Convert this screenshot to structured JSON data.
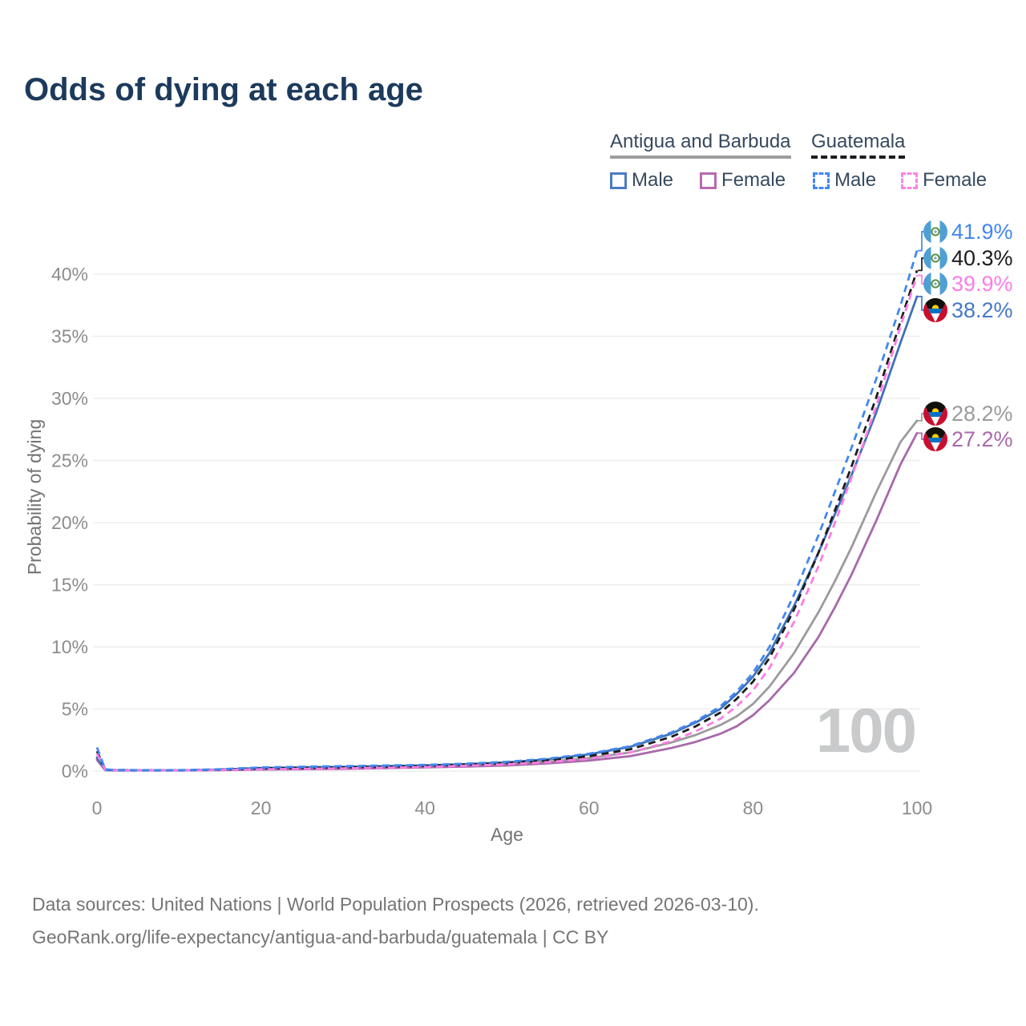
{
  "title": "Odds of dying at each age",
  "watermark": "100",
  "legend": {
    "groups": [
      {
        "label": "Antigua and Barbuda",
        "line_color": "#9e9e9e",
        "line_style": "solid"
      },
      {
        "label": "Guatemala",
        "line_color": "#1c1c1c",
        "line_style": "dashed"
      }
    ],
    "items": [
      {
        "country": "Antigua and Barbuda",
        "label": "Male",
        "swatch_color": "#4a7bc4",
        "swatch_style": "solid"
      },
      {
        "country": "Antigua and Barbuda",
        "label": "Female",
        "swatch_color": "#b66ab0",
        "swatch_style": "solid"
      },
      {
        "country": "Guatemala",
        "label": "Male",
        "swatch_color": "#4287f0",
        "swatch_style": "dashed"
      },
      {
        "country": "Guatemala",
        "label": "Female",
        "swatch_color": "#fb85e6",
        "swatch_style": "dashed"
      }
    ]
  },
  "chart_data": {
    "type": "line",
    "title": "Odds of dying at each age",
    "xlabel": "Age",
    "ylabel": "Probability of dying",
    "xlim": [
      0,
      100
    ],
    "ylim": [
      0,
      43
    ],
    "grid": "horizontal",
    "legend_position": "top-right",
    "x_ticks": [
      {
        "v": 0,
        "label": "0"
      },
      {
        "v": 20,
        "label": "20"
      },
      {
        "v": 40,
        "label": "40"
      },
      {
        "v": 60,
        "label": "60"
      },
      {
        "v": 80,
        "label": "80"
      },
      {
        "v": 100,
        "label": "100"
      }
    ],
    "y_ticks": [
      {
        "v": 0,
        "label": "0%"
      },
      {
        "v": 5,
        "label": "5%"
      },
      {
        "v": 10,
        "label": "10%"
      },
      {
        "v": 15,
        "label": "15%"
      },
      {
        "v": 20,
        "label": "20%"
      },
      {
        "v": 25,
        "label": "25%"
      },
      {
        "v": 30,
        "label": "30%"
      },
      {
        "v": 35,
        "label": "35%"
      },
      {
        "v": 40,
        "label": "40%"
      }
    ],
    "series": [
      {
        "name": "Antigua and Barbuda",
        "sex": "both",
        "color": "#9b9b9b",
        "dashed": false,
        "points": [
          [
            0,
            1.0
          ],
          [
            1,
            0.09
          ],
          [
            2,
            0.06
          ],
          [
            5,
            0.05
          ],
          [
            10,
            0.05
          ],
          [
            15,
            0.1
          ],
          [
            20,
            0.18
          ],
          [
            25,
            0.22
          ],
          [
            30,
            0.26
          ],
          [
            35,
            0.31
          ],
          [
            40,
            0.38
          ],
          [
            45,
            0.46
          ],
          [
            50,
            0.55
          ],
          [
            55,
            0.75
          ],
          [
            60,
            1.05
          ],
          [
            65,
            1.5
          ],
          [
            70,
            2.3
          ],
          [
            73,
            2.9
          ],
          [
            76,
            3.7
          ],
          [
            78,
            4.4
          ],
          [
            80,
            5.4
          ],
          [
            82,
            6.8
          ],
          [
            85,
            9.5
          ],
          [
            88,
            12.8
          ],
          [
            90,
            15.3
          ],
          [
            92,
            18.0
          ],
          [
            95,
            22.4
          ],
          [
            98,
            26.5
          ],
          [
            100,
            28.2
          ]
        ]
      },
      {
        "name": "Antigua and Barbuda Female",
        "sex": "female",
        "color": "#a869aa",
        "dashed": false,
        "points": [
          [
            0,
            0.9
          ],
          [
            1,
            0.08
          ],
          [
            2,
            0.05
          ],
          [
            5,
            0.05
          ],
          [
            10,
            0.05
          ],
          [
            15,
            0.08
          ],
          [
            20,
            0.12
          ],
          [
            25,
            0.15
          ],
          [
            30,
            0.18
          ],
          [
            35,
            0.24
          ],
          [
            40,
            0.3
          ],
          [
            45,
            0.37
          ],
          [
            50,
            0.45
          ],
          [
            55,
            0.62
          ],
          [
            60,
            0.85
          ],
          [
            65,
            1.2
          ],
          [
            70,
            1.85
          ],
          [
            73,
            2.35
          ],
          [
            76,
            3.0
          ],
          [
            78,
            3.6
          ],
          [
            80,
            4.5
          ],
          [
            82,
            5.7
          ],
          [
            85,
            7.9
          ],
          [
            88,
            10.8
          ],
          [
            90,
            13.2
          ],
          [
            92,
            15.8
          ],
          [
            95,
            20.1
          ],
          [
            98,
            24.7
          ],
          [
            100,
            27.2
          ]
        ]
      },
      {
        "name": "Antigua and Barbuda Male",
        "sex": "male",
        "color": "#3f72b7",
        "dashed": false,
        "points": [
          [
            0,
            1.1
          ],
          [
            1,
            0.1
          ],
          [
            2,
            0.07
          ],
          [
            5,
            0.06
          ],
          [
            10,
            0.06
          ],
          [
            15,
            0.12
          ],
          [
            20,
            0.25
          ],
          [
            25,
            0.3
          ],
          [
            30,
            0.35
          ],
          [
            35,
            0.4
          ],
          [
            40,
            0.46
          ],
          [
            45,
            0.56
          ],
          [
            50,
            0.7
          ],
          [
            55,
            0.95
          ],
          [
            60,
            1.35
          ],
          [
            65,
            1.95
          ],
          [
            70,
            3.0
          ],
          [
            73,
            3.9
          ],
          [
            76,
            5.0
          ],
          [
            78,
            6.2
          ],
          [
            80,
            7.6
          ],
          [
            82,
            9.5
          ],
          [
            85,
            13.3
          ],
          [
            88,
            17.6
          ],
          [
            90,
            20.7
          ],
          [
            92,
            23.8
          ],
          [
            95,
            28.8
          ],
          [
            98,
            34.5
          ],
          [
            100,
            38.2
          ]
        ]
      },
      {
        "name": "Guatemala",
        "sex": "both",
        "color": "#1c1c1c",
        "dashed": true,
        "points": [
          [
            0,
            1.6
          ],
          [
            1,
            0.13
          ],
          [
            2,
            0.09
          ],
          [
            5,
            0.07
          ],
          [
            10,
            0.07
          ],
          [
            15,
            0.12
          ],
          [
            20,
            0.22
          ],
          [
            25,
            0.26
          ],
          [
            30,
            0.3
          ],
          [
            35,
            0.35
          ],
          [
            40,
            0.42
          ],
          [
            45,
            0.52
          ],
          [
            50,
            0.65
          ],
          [
            55,
            0.85
          ],
          [
            60,
            1.2
          ],
          [
            65,
            1.75
          ],
          [
            70,
            2.75
          ],
          [
            73,
            3.6
          ],
          [
            76,
            4.7
          ],
          [
            78,
            5.8
          ],
          [
            80,
            7.2
          ],
          [
            82,
            9.1
          ],
          [
            85,
            13.0
          ],
          [
            88,
            17.6
          ],
          [
            90,
            21.0
          ],
          [
            92,
            24.5
          ],
          [
            95,
            30.0
          ],
          [
            98,
            36.2
          ],
          [
            100,
            40.3
          ]
        ]
      },
      {
        "name": "Guatemala Female",
        "sex": "female",
        "color": "#fb7de4",
        "dashed": true,
        "points": [
          [
            0,
            1.4
          ],
          [
            1,
            0.12
          ],
          [
            2,
            0.08
          ],
          [
            5,
            0.06
          ],
          [
            10,
            0.06
          ],
          [
            15,
            0.1
          ],
          [
            20,
            0.15
          ],
          [
            25,
            0.18
          ],
          [
            30,
            0.22
          ],
          [
            35,
            0.27
          ],
          [
            40,
            0.33
          ],
          [
            45,
            0.43
          ],
          [
            50,
            0.55
          ],
          [
            55,
            0.72
          ],
          [
            60,
            1.0
          ],
          [
            65,
            1.5
          ],
          [
            70,
            2.4
          ],
          [
            73,
            3.2
          ],
          [
            76,
            4.2
          ],
          [
            78,
            5.2
          ],
          [
            80,
            6.5
          ],
          [
            82,
            8.3
          ],
          [
            85,
            12.0
          ],
          [
            88,
            16.5
          ],
          [
            90,
            20.0
          ],
          [
            92,
            23.6
          ],
          [
            95,
            29.3
          ],
          [
            98,
            35.8
          ],
          [
            100,
            39.9
          ]
        ]
      },
      {
        "name": "Guatemala Male",
        "sex": "male",
        "color": "#4287f0",
        "dashed": true,
        "points": [
          [
            0,
            1.9
          ],
          [
            1,
            0.15
          ],
          [
            2,
            0.1
          ],
          [
            5,
            0.08
          ],
          [
            10,
            0.08
          ],
          [
            15,
            0.15
          ],
          [
            20,
            0.3
          ],
          [
            25,
            0.35
          ],
          [
            30,
            0.4
          ],
          [
            35,
            0.45
          ],
          [
            40,
            0.5
          ],
          [
            45,
            0.6
          ],
          [
            50,
            0.75
          ],
          [
            55,
            1.0
          ],
          [
            60,
            1.4
          ],
          [
            65,
            2.0
          ],
          [
            70,
            3.1
          ],
          [
            73,
            4.0
          ],
          [
            76,
            5.2
          ],
          [
            78,
            6.4
          ],
          [
            80,
            7.9
          ],
          [
            82,
            10.0
          ],
          [
            85,
            14.2
          ],
          [
            88,
            19.0
          ],
          [
            90,
            22.5
          ],
          [
            92,
            26.0
          ],
          [
            95,
            31.5
          ],
          [
            98,
            37.5
          ],
          [
            100,
            41.9
          ]
        ]
      }
    ],
    "end_labels": [
      {
        "text": "41.9%",
        "value": 41.9,
        "color": "#4287f0",
        "flag": "guatemala",
        "series": "Guatemala Male"
      },
      {
        "text": "40.3%",
        "value": 40.3,
        "color": "#1c1c1c",
        "flag": "guatemala",
        "series": "Guatemala"
      },
      {
        "text": "39.9%",
        "value": 39.9,
        "color": "#fb7de4",
        "flag": "guatemala",
        "series": "Guatemala Female"
      },
      {
        "text": "38.2%",
        "value": 38.2,
        "color": "#4478c8",
        "flag": "antigua-and-barbuda",
        "series": "Antigua and Barbuda Male"
      },
      {
        "text": "28.2%",
        "value": 28.2,
        "color": "#9b9b9b",
        "flag": "antigua-and-barbuda",
        "series": "Antigua and Barbuda"
      },
      {
        "text": "27.2%",
        "value": 27.2,
        "color": "#a869aa",
        "flag": "antigua-and-barbuda",
        "series": "Antigua and Barbuda Female"
      }
    ]
  },
  "footer": {
    "line1": "Data sources: United Nations | World Population Prospects (2026, retrieved 2026-03-10).",
    "line2": "GeoRank.org/life-expectancy/antigua-and-barbuda/guatemala | CC BY"
  }
}
